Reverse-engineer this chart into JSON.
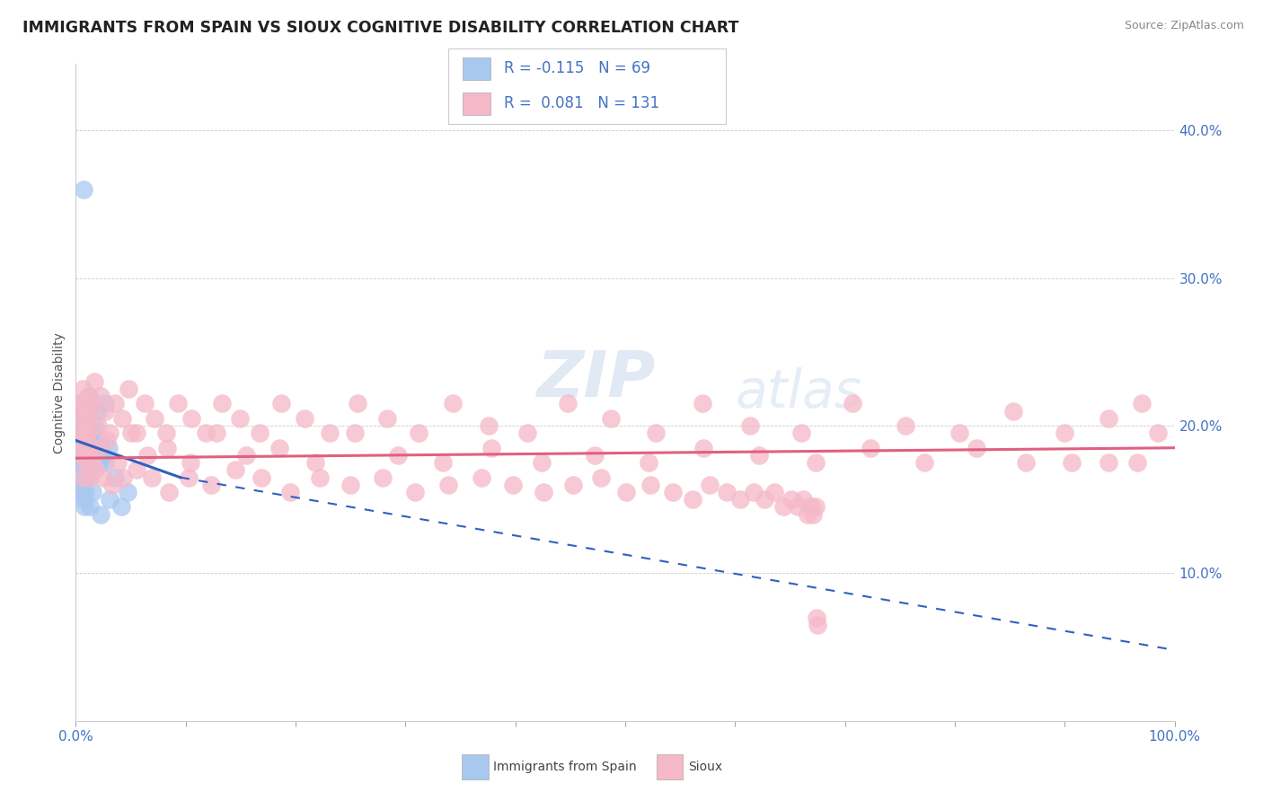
{
  "title": "IMMIGRANTS FROM SPAIN VS SIOUX COGNITIVE DISABILITY CORRELATION CHART",
  "source": "Source: ZipAtlas.com",
  "ylabel": "Cognitive Disability",
  "yticks": [
    0.1,
    0.2,
    0.3,
    0.4
  ],
  "ytick_labels": [
    "10.0%",
    "20.0%",
    "30.0%",
    "40.0%"
  ],
  "xmin": 0.0,
  "xmax": 1.0,
  "ymin": 0.0,
  "ymax": 0.445,
  "color_spain": "#A8C8F0",
  "color_sioux": "#F5B8C8",
  "color_spain_line": "#3060C0",
  "color_sioux_line": "#E06080",
  "background_color": "#FFFFFF",
  "legend_color": "#4472C4",
  "spain_x": [
    0.003,
    0.004,
    0.004,
    0.005,
    0.005,
    0.005,
    0.005,
    0.006,
    0.006,
    0.006,
    0.006,
    0.007,
    0.007,
    0.007,
    0.008,
    0.008,
    0.008,
    0.008,
    0.009,
    0.009,
    0.009,
    0.01,
    0.01,
    0.01,
    0.01,
    0.011,
    0.011,
    0.011,
    0.012,
    0.012,
    0.012,
    0.013,
    0.013,
    0.014,
    0.015,
    0.015,
    0.015,
    0.016,
    0.017,
    0.018,
    0.018,
    0.02,
    0.021,
    0.022,
    0.023,
    0.025,
    0.027,
    0.03,
    0.003,
    0.004,
    0.005,
    0.006,
    0.007,
    0.008,
    0.009,
    0.01,
    0.011,
    0.012,
    0.013,
    0.015,
    0.017,
    0.02,
    0.023,
    0.027,
    0.031,
    0.036,
    0.041,
    0.047,
    0.007
  ],
  "spain_y": [
    0.19,
    0.185,
    0.215,
    0.175,
    0.195,
    0.185,
    0.205,
    0.18,
    0.195,
    0.17,
    0.2,
    0.185,
    0.195,
    0.175,
    0.19,
    0.2,
    0.18,
    0.175,
    0.195,
    0.185,
    0.175,
    0.19,
    0.18,
    0.2,
    0.185,
    0.195,
    0.175,
    0.185,
    0.19,
    0.18,
    0.195,
    0.175,
    0.185,
    0.19,
    0.185,
    0.175,
    0.195,
    0.18,
    0.19,
    0.185,
    0.175,
    0.18,
    0.19,
    0.175,
    0.185,
    0.18,
    0.175,
    0.185,
    0.16,
    0.21,
    0.155,
    0.165,
    0.15,
    0.145,
    0.155,
    0.165,
    0.21,
    0.22,
    0.145,
    0.155,
    0.2,
    0.21,
    0.14,
    0.215,
    0.15,
    0.165,
    0.145,
    0.155,
    0.36
  ],
  "sioux_x": [
    0.003,
    0.004,
    0.005,
    0.006,
    0.007,
    0.007,
    0.008,
    0.008,
    0.009,
    0.01,
    0.01,
    0.011,
    0.012,
    0.013,
    0.015,
    0.017,
    0.02,
    0.023,
    0.027,
    0.031,
    0.036,
    0.042,
    0.048,
    0.055,
    0.063,
    0.072,
    0.082,
    0.093,
    0.105,
    0.118,
    0.133,
    0.149,
    0.167,
    0.187,
    0.208,
    0.231,
    0.256,
    0.283,
    0.312,
    0.343,
    0.376,
    0.411,
    0.448,
    0.487,
    0.528,
    0.57,
    0.614,
    0.66,
    0.707,
    0.755,
    0.804,
    0.853,
    0.9,
    0.94,
    0.97,
    0.985,
    0.007,
    0.01,
    0.015,
    0.02,
    0.028,
    0.038,
    0.05,
    0.065,
    0.083,
    0.104,
    0.128,
    0.155,
    0.185,
    0.218,
    0.254,
    0.293,
    0.334,
    0.378,
    0.424,
    0.472,
    0.521,
    0.571,
    0.622,
    0.673,
    0.723,
    0.772,
    0.82,
    0.865,
    0.906,
    0.94,
    0.966,
    0.006,
    0.009,
    0.013,
    0.018,
    0.025,
    0.033,
    0.043,
    0.055,
    0.069,
    0.085,
    0.103,
    0.123,
    0.145,
    0.169,
    0.195,
    0.222,
    0.25,
    0.279,
    0.309,
    0.339,
    0.369,
    0.398,
    0.426,
    0.453,
    0.478,
    0.501,
    0.523,
    0.543,
    0.561,
    0.577,
    0.592,
    0.605,
    0.617,
    0.627,
    0.636,
    0.644,
    0.651,
    0.657,
    0.662,
    0.666,
    0.669,
    0.671,
    0.673,
    0.674,
    0.675
  ],
  "sioux_y": [
    0.215,
    0.205,
    0.195,
    0.225,
    0.185,
    0.215,
    0.195,
    0.205,
    0.185,
    0.21,
    0.195,
    0.205,
    0.22,
    0.185,
    0.215,
    0.23,
    0.2,
    0.22,
    0.21,
    0.195,
    0.215,
    0.205,
    0.225,
    0.195,
    0.215,
    0.205,
    0.195,
    0.215,
    0.205,
    0.195,
    0.215,
    0.205,
    0.195,
    0.215,
    0.205,
    0.195,
    0.215,
    0.205,
    0.195,
    0.215,
    0.2,
    0.195,
    0.215,
    0.205,
    0.195,
    0.215,
    0.2,
    0.195,
    0.215,
    0.2,
    0.195,
    0.21,
    0.195,
    0.205,
    0.215,
    0.195,
    0.18,
    0.195,
    0.175,
    0.185,
    0.19,
    0.175,
    0.195,
    0.18,
    0.185,
    0.175,
    0.195,
    0.18,
    0.185,
    0.175,
    0.195,
    0.18,
    0.175,
    0.185,
    0.175,
    0.18,
    0.175,
    0.185,
    0.18,
    0.175,
    0.185,
    0.175,
    0.185,
    0.175,
    0.175,
    0.175,
    0.175,
    0.165,
    0.175,
    0.165,
    0.17,
    0.165,
    0.16,
    0.165,
    0.17,
    0.165,
    0.155,
    0.165,
    0.16,
    0.17,
    0.165,
    0.155,
    0.165,
    0.16,
    0.165,
    0.155,
    0.16,
    0.165,
    0.16,
    0.155,
    0.16,
    0.165,
    0.155,
    0.16,
    0.155,
    0.15,
    0.16,
    0.155,
    0.15,
    0.155,
    0.15,
    0.155,
    0.145,
    0.15,
    0.145,
    0.15,
    0.14,
    0.145,
    0.14,
    0.145,
    0.07,
    0.065
  ],
  "spain_trend_x0": 0.0,
  "spain_trend_x_solid_end": 0.095,
  "spain_trend_x1": 1.0,
  "spain_trend_y0": 0.19,
  "spain_trend_y_solid_end": 0.165,
  "spain_trend_y1": 0.048,
  "sioux_trend_x0": 0.0,
  "sioux_trend_x1": 1.0,
  "sioux_trend_y0": 0.178,
  "sioux_trend_y1": 0.185
}
